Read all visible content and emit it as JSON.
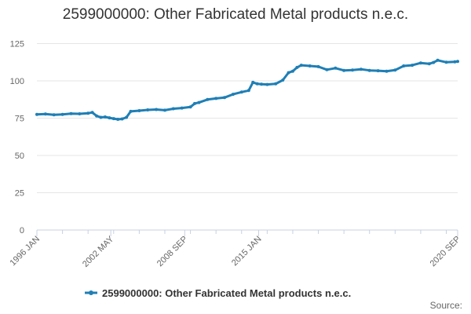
{
  "chart_data": {
    "type": "line",
    "title": "2599000000: Other Fabricated Metal products n.e.c.",
    "xlabel": "",
    "ylabel": "",
    "x_tick_labels": [
      "1996 JAN",
      "2002 MAY",
      "2008 SEP",
      "2015 JAN",
      "2020 SEP"
    ],
    "y_ticks": [
      0,
      25,
      50,
      75,
      100,
      125
    ],
    "ylim": [
      0,
      130
    ],
    "xlim": [
      "1996-01",
      "2020-09"
    ],
    "grid": "horizontal",
    "legend_position": "bottom",
    "series": [
      {
        "name": "2599000000: Other Fabricated Metal products n.e.c.",
        "color": "#1f7fb5",
        "x": [
          "1996-01",
          "1996-07",
          "1997-01",
          "1997-07",
          "1998-01",
          "1998-07",
          "1999-01",
          "1999-04",
          "1999-07",
          "1999-10",
          "2000-01",
          "2000-04",
          "2000-07",
          "2000-10",
          "2001-01",
          "2001-04",
          "2001-07",
          "2002-01",
          "2002-07",
          "2003-01",
          "2003-07",
          "2004-01",
          "2004-07",
          "2005-01",
          "2005-04",
          "2005-07",
          "2006-01",
          "2006-07",
          "2007-01",
          "2007-07",
          "2008-01",
          "2008-06",
          "2008-09",
          "2008-12",
          "2009-03",
          "2009-07",
          "2010-01",
          "2010-06",
          "2010-10",
          "2011-01",
          "2011-04",
          "2011-07",
          "2012-01",
          "2012-07",
          "2013-01",
          "2013-07",
          "2014-01",
          "2014-07",
          "2015-01",
          "2015-07",
          "2016-01",
          "2016-07",
          "2017-01",
          "2017-07",
          "2018-01",
          "2018-07",
          "2019-01",
          "2019-04",
          "2019-07",
          "2020-01",
          "2020-07",
          "2020-09"
        ],
        "values": [
          77.5,
          77.8,
          77.2,
          77.5,
          78.0,
          77.9,
          78.3,
          78.8,
          76.5,
          75.5,
          75.8,
          75.2,
          74.7,
          74.2,
          74.5,
          75.5,
          79.5,
          80.0,
          80.5,
          80.8,
          80.3,
          81.3,
          81.8,
          82.5,
          84.8,
          85.5,
          87.5,
          88.2,
          88.8,
          91.0,
          92.5,
          93.5,
          99.0,
          98.0,
          97.8,
          97.6,
          98.0,
          100.5,
          105.5,
          106.5,
          109.0,
          110.5,
          110.0,
          109.5,
          107.5,
          108.5,
          107.0,
          107.2,
          107.8,
          107.0,
          106.8,
          106.5,
          107.2,
          110.0,
          110.5,
          112.0,
          111.5,
          112.3,
          113.8,
          112.5,
          112.8,
          113.0
        ]
      }
    ],
    "source_label": "Source:"
  }
}
